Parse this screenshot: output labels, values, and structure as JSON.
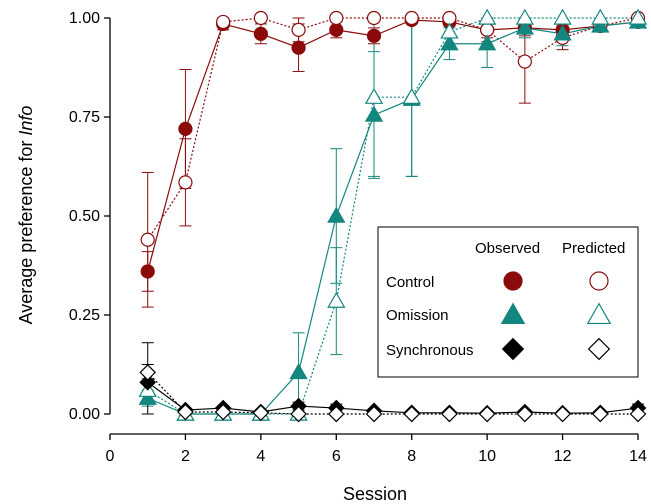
{
  "chart_data": {
    "type": "line",
    "xlabel": "Session",
    "ylabel_prefix": "Average preference for ",
    "ylabel_italic": "Info",
    "xlim": [
      0,
      14
    ],
    "ylim": [
      0,
      1
    ],
    "xticks": [
      0,
      2,
      4,
      6,
      8,
      10,
      12,
      14
    ],
    "yticks": [
      0,
      0.25,
      0.5,
      0.75,
      1
    ],
    "ytick_labels": [
      "0.00",
      "0.25",
      "0.50",
      "0.75",
      "1.00"
    ],
    "grid": false,
    "legend": {
      "placement": "center-right",
      "col_observed": "Observed",
      "col_predicted": "Predicted",
      "rows": [
        "Control",
        "Omission",
        "Synchronous"
      ]
    },
    "series": [
      {
        "group": "Control",
        "kind": "observed",
        "marker": "circle",
        "filled": true,
        "line": "solid",
        "color": "#8b0b0b",
        "x": [
          1,
          2,
          3,
          4,
          5,
          6,
          7,
          8,
          9,
          10,
          11,
          12,
          13,
          14
        ],
        "y": [
          0.36,
          0.72,
          0.985,
          0.96,
          0.925,
          0.97,
          0.955,
          0.995,
          0.99,
          0.97,
          0.975,
          0.97,
          0.98,
          0.99
        ],
        "err": [
          0.05,
          0.15,
          0.015,
          0.025,
          0.06,
          0.02,
          0.02,
          0.005,
          0.01,
          0.02,
          0.02,
          0.02,
          0.015,
          0.01
        ]
      },
      {
        "group": "Control",
        "kind": "predicted",
        "marker": "circle",
        "filled": false,
        "line": "dotted",
        "color": "#8b0b0b",
        "x": [
          1,
          2,
          3,
          4,
          5,
          6,
          7,
          8,
          9,
          10,
          11,
          12,
          13,
          14
        ],
        "y": [
          0.44,
          0.585,
          0.99,
          1.0,
          0.97,
          1.0,
          1.0,
          1.0,
          1.0,
          0.97,
          0.89,
          0.95,
          0.98,
          1.0
        ],
        "err": [
          0.17,
          0.11,
          0.01,
          0.0,
          0.03,
          0.0,
          0.0,
          0.0,
          0.0,
          0.03,
          0.105,
          0.03,
          0.01,
          0.0
        ]
      },
      {
        "group": "Omission",
        "kind": "observed",
        "marker": "triangle",
        "filled": true,
        "line": "solid",
        "color": "#13877f",
        "x": [
          1,
          2,
          3,
          4,
          5,
          6,
          7,
          8,
          9,
          10,
          11,
          12,
          13,
          14
        ],
        "y": [
          0.04,
          0.0,
          0.0,
          0.0,
          0.105,
          0.5,
          0.755,
          0.795,
          0.935,
          0.935,
          0.975,
          0.96,
          0.98,
          0.99
        ],
        "err": [
          0.02,
          0.0,
          0.0,
          0.0,
          0.1,
          0.17,
          0.16,
          0.195,
          0.04,
          0.06,
          0.025,
          0.03,
          0.015,
          0.01
        ]
      },
      {
        "group": "Omission",
        "kind": "predicted",
        "marker": "triangle",
        "filled": false,
        "line": "dotted",
        "color": "#13877f",
        "x": [
          1,
          2,
          3,
          4,
          5,
          6,
          7,
          8,
          9,
          10,
          11,
          12,
          13,
          14
        ],
        "y": [
          0.06,
          0.0,
          0.0,
          0.0,
          0.0,
          0.285,
          0.8,
          0.8,
          0.965,
          1.0,
          1.0,
          1.0,
          1.0,
          1.0
        ],
        "err": [
          0.03,
          0.0,
          0.0,
          0.0,
          0.0,
          0.135,
          0.2,
          0.2,
          0.035,
          0.0,
          0.0,
          0.0,
          0.0,
          0.0
        ]
      },
      {
        "group": "Synchronous",
        "kind": "observed",
        "marker": "diamond",
        "filled": true,
        "line": "solid",
        "color": "#000000",
        "x": [
          1,
          2,
          3,
          4,
          5,
          6,
          7,
          8,
          9,
          10,
          11,
          12,
          13,
          14
        ],
        "y": [
          0.08,
          0.01,
          0.015,
          0.005,
          0.02,
          0.015,
          0.008,
          0.003,
          0.003,
          0.002,
          0.005,
          0.002,
          0.003,
          0.015
        ],
        "err": [
          0.1,
          0.005,
          0.005,
          0.003,
          0.01,
          0.01,
          0.005,
          0.003,
          0.002,
          0.002,
          0.005,
          0.002,
          0.002,
          0.01
        ]
      },
      {
        "group": "Synchronous",
        "kind": "predicted",
        "marker": "diamond",
        "filled": false,
        "line": "dotted",
        "color": "#000000",
        "x": [
          1,
          2,
          3,
          4,
          5,
          6,
          7,
          8,
          9,
          10,
          11,
          12,
          13,
          14
        ],
        "y": [
          0.105,
          0.005,
          0.005,
          0.003,
          0.0,
          0.0,
          0.0,
          0.0,
          0.0,
          0.0,
          0.0,
          0.0,
          0.0,
          0.0
        ],
        "err": [
          0.02,
          0.003,
          0.003,
          0.002,
          0.0,
          0.0,
          0.0,
          0.0,
          0.0,
          0.0,
          0.0,
          0.0,
          0.0,
          0.0
        ]
      }
    ]
  }
}
